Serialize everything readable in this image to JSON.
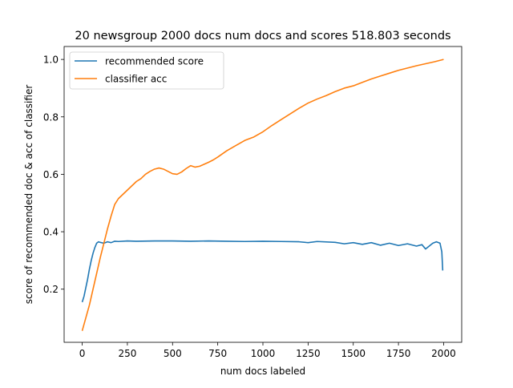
{
  "chart_data": {
    "type": "line",
    "title": "20 newsgroup 2000 docs num docs and scores 518.803 seconds",
    "xlabel": "num docs labeled",
    "ylabel": "score of recommended doc & acc of classifier",
    "xlim": [
      -100,
      2100
    ],
    "ylim": [
      0.015,
      1.045
    ],
    "xticks": [
      0,
      250,
      500,
      750,
      1000,
      1250,
      1500,
      1750,
      2000
    ],
    "xtick_labels": [
      "0",
      "250",
      "500",
      "750",
      "1000",
      "1250",
      "1500",
      "1750",
      "2000"
    ],
    "yticks": [
      0.2,
      0.4,
      0.6,
      0.8,
      1.0
    ],
    "ytick_labels": [
      "0.2",
      "0.4",
      "0.6",
      "0.8",
      "1.0"
    ],
    "grid": false,
    "legend_position": "top-left",
    "series": [
      {
        "name": "recommended score",
        "color": "#1f77b4",
        "x": [
          0,
          10,
          20,
          30,
          40,
          50,
          60,
          70,
          80,
          90,
          100,
          120,
          140,
          160,
          180,
          200,
          250,
          300,
          400,
          500,
          600,
          700,
          800,
          900,
          1000,
          1100,
          1200,
          1250,
          1300,
          1400,
          1450,
          1500,
          1550,
          1600,
          1650,
          1700,
          1750,
          1800,
          1850,
          1880,
          1900,
          1920,
          1940,
          1960,
          1980,
          1990,
          1995
        ],
        "y": [
          0.155,
          0.175,
          0.205,
          0.235,
          0.27,
          0.3,
          0.325,
          0.345,
          0.36,
          0.365,
          0.363,
          0.36,
          0.365,
          0.362,
          0.367,
          0.366,
          0.368,
          0.367,
          0.368,
          0.368,
          0.367,
          0.368,
          0.367,
          0.366,
          0.367,
          0.366,
          0.365,
          0.362,
          0.366,
          0.363,
          0.358,
          0.362,
          0.356,
          0.362,
          0.353,
          0.36,
          0.352,
          0.358,
          0.35,
          0.355,
          0.34,
          0.35,
          0.36,
          0.365,
          0.36,
          0.33,
          0.265
        ]
      },
      {
        "name": "classifier acc",
        "color": "#ff7f0e",
        "x": [
          0,
          20,
          40,
          60,
          80,
          100,
          120,
          140,
          160,
          180,
          200,
          225,
          250,
          275,
          300,
          325,
          350,
          375,
          400,
          425,
          450,
          475,
          500,
          525,
          550,
          575,
          600,
          625,
          650,
          675,
          700,
          725,
          750,
          800,
          850,
          900,
          950,
          1000,
          1050,
          1100,
          1150,
          1200,
          1250,
          1300,
          1350,
          1400,
          1450,
          1500,
          1550,
          1600,
          1650,
          1700,
          1750,
          1800,
          1850,
          1900,
          1950,
          2000
        ],
        "y": [
          0.055,
          0.1,
          0.145,
          0.2,
          0.255,
          0.31,
          0.36,
          0.41,
          0.455,
          0.495,
          0.515,
          0.53,
          0.545,
          0.56,
          0.575,
          0.585,
          0.6,
          0.61,
          0.618,
          0.622,
          0.618,
          0.61,
          0.602,
          0.6,
          0.608,
          0.62,
          0.63,
          0.625,
          0.628,
          0.635,
          0.642,
          0.65,
          0.66,
          0.682,
          0.7,
          0.718,
          0.73,
          0.748,
          0.77,
          0.79,
          0.81,
          0.83,
          0.848,
          0.862,
          0.874,
          0.888,
          0.9,
          0.908,
          0.92,
          0.932,
          0.942,
          0.952,
          0.962,
          0.97,
          0.978,
          0.985,
          0.992,
          1.0
        ]
      }
    ]
  }
}
